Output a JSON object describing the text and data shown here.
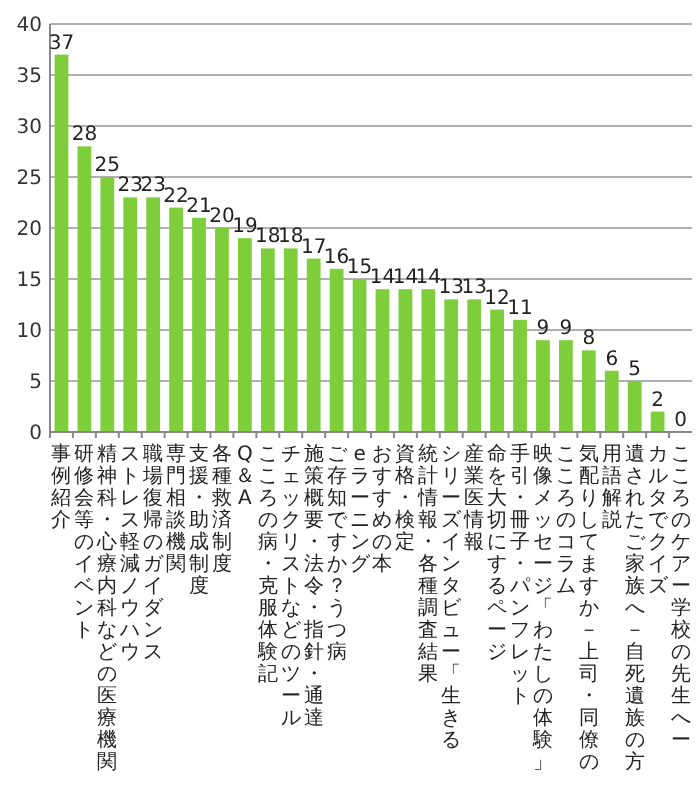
{
  "chart_data": {
    "type": "bar",
    "categories": [
      "事例紹介",
      "研修会等のイベント",
      "精神科・心療内科などの医療機関",
      "ストレス軽減ノウハウ",
      "職場復帰のガイダンス",
      "専門相談機関",
      "支援・助成制度",
      "各種救済制度",
      "Q＆A",
      "こころの病・克服体験記",
      "チェックリストなどのツール",
      "施策概要・法令・指針・通達",
      "ご存知ですか？うつ病",
      "eラーニング",
      "おすすめの本",
      "資格・検定",
      "統計情報・各種調査結果",
      "シリーズインタビュー「生きる",
      "産業医情報",
      "命を大切にするページ",
      "手引・冊子・パンフレット",
      "映像メッセージ「わたしの体験」",
      "こころのコラム",
      "気配りしてますか－上司・同僚の",
      "用語解説",
      "遺されたご家族へ－自死遺族の方",
      "カルタでクイズ",
      "こころのケアー学校の先生へー"
    ],
    "values": [
      37,
      28,
      25,
      23,
      23,
      22,
      21,
      20,
      19,
      18,
      18,
      17,
      16,
      15,
      14,
      14,
      14,
      13,
      13,
      12,
      11,
      9,
      9,
      8,
      6,
      5,
      2,
      0
    ],
    "color": "#7dce3a",
    "ylim": [
      0,
      40
    ],
    "yticks": [
      0,
      5,
      10,
      15,
      20,
      25,
      30,
      35,
      40
    ],
    "grid": "y",
    "data_labels": true
  }
}
